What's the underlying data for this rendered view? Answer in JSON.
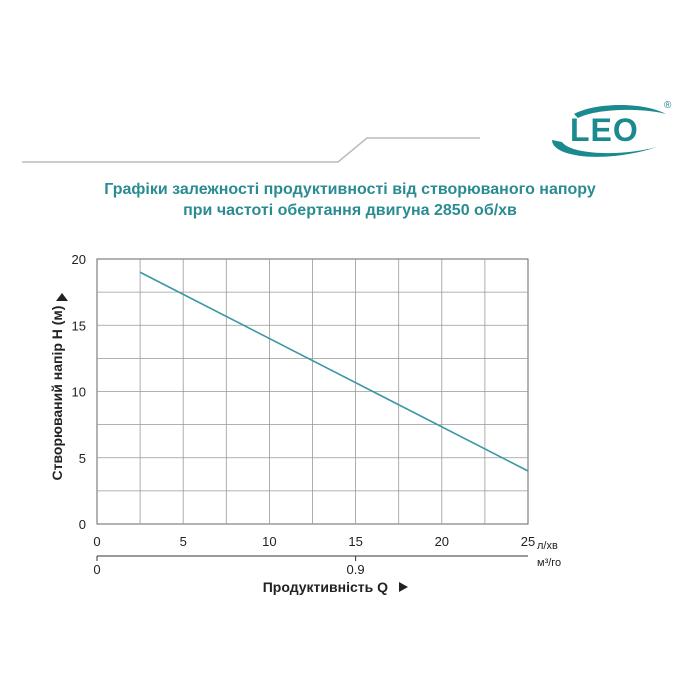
{
  "brand": {
    "name": "LEO",
    "registered_mark": "®",
    "color": "#1b8a8f"
  },
  "title_lines": [
    "Графіки залежності продуктивності від створюваного напору",
    "при частоті обертання двигуна 2850 об/хв"
  ],
  "colors": {
    "title": "#2a8c92",
    "curve": "#3a97a3",
    "grid": "#999999",
    "header_line": "#bbbbbb"
  },
  "chart_data": {
    "type": "line",
    "title": "",
    "xlabel": "Продуктивність  Q",
    "ylabel": "Створюваний напір H (м)",
    "x_unit": "л/хв",
    "x2_unit": "м³/го",
    "xlim": [
      0,
      25
    ],
    "ylim": [
      0,
      20
    ],
    "x_ticks": [
      0,
      5,
      10,
      15,
      20,
      25
    ],
    "y_ticks": [
      0,
      5,
      10,
      15,
      20
    ],
    "x_grid_step": 2.5,
    "y_grid_step": 2.5,
    "x2_ticks": [
      {
        "value": 0,
        "label": "0",
        "x_equiv": 0
      },
      {
        "value": 0.9,
        "label": "0.9",
        "x_equiv": 15
      }
    ],
    "grid": true,
    "series": [
      {
        "x": [
          2.5,
          25
        ],
        "y": [
          19,
          4
        ]
      }
    ]
  }
}
